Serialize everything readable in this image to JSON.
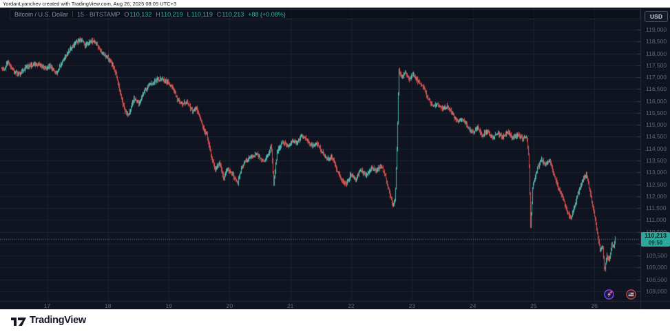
{
  "attribution": "YordanLyanchev created with TradingView.com, Aug 26, 2025 08:05 UTC+3",
  "footer": {
    "brand": "TradingView"
  },
  "chart": {
    "legend": {
      "symbol": "Bitcoin / U.S. Dollar",
      "timeframe_exchange": "15 · BITSTAMP",
      "ohlc": [
        {
          "k": "O",
          "v": "110,132"
        },
        {
          "k": "H",
          "v": "110,219"
        },
        {
          "k": "L",
          "v": "110,119"
        },
        {
          "k": "C",
          "v": "110,213"
        }
      ],
      "change": "+88 (+0.08%)"
    },
    "currency_button": "USD",
    "price_label": {
      "price": "110,213",
      "countdown": "09:50"
    },
    "event_markers": [
      {
        "name": "crypto-event",
        "style": "purple-sparkle"
      },
      {
        "name": "us-economic-event",
        "style": "us-flag"
      }
    ]
  },
  "chart_data": {
    "type": "candlestick",
    "title": "Bitcoin / U.S. Dollar",
    "exchange": "BITSTAMP",
    "interval_minutes": 15,
    "ohlc": {
      "open": 110132,
      "high": 110219,
      "low": 110119,
      "close": 110213
    },
    "change_abs": "+88",
    "change_pct": "+0.08%",
    "last_price": 110213,
    "bar_close_countdown": "09:50",
    "grid": true,
    "legend_position": "top-left",
    "colors": {
      "up": "#54bab0",
      "down": "#d6524f",
      "accent": "#2aa89b",
      "grid": "#1c2330",
      "background": "#0f1420"
    },
    "y_axis": {
      "side": "right",
      "range": [
        108000,
        119000
      ],
      "step": 500,
      "ticks": [
        119000,
        118500,
        118000,
        117500,
        117000,
        116500,
        116000,
        115500,
        115000,
        114500,
        114000,
        113500,
        113000,
        112500,
        112000,
        111500,
        111000,
        110500,
        110000,
        109500,
        109000,
        108500,
        108000
      ],
      "labels": [
        "119,000",
        "118,500",
        "118,000",
        "117,500",
        "117,000",
        "116,500",
        "116,000",
        "115,500",
        "115,000",
        "114,500",
        "114,000",
        "113,500",
        "113,000",
        "112,500",
        "112,000",
        "111,500",
        "111,000",
        "110,500",
        "110,000",
        "109,500",
        "109,000",
        "108,500",
        "108,000"
      ]
    },
    "x_axis": {
      "unit": "day-of-month (Aug 2025)",
      "ticks": [
        17,
        18,
        19,
        20,
        21,
        22,
        23,
        24,
        25,
        26
      ],
      "labels": [
        "17",
        "18",
        "19",
        "20",
        "21",
        "22",
        "23",
        "24",
        "25",
        "26"
      ]
    },
    "price_path": [
      [
        16.2,
        117500
      ],
      [
        16.28,
        117300
      ],
      [
        16.35,
        117650
      ],
      [
        16.45,
        117200
      ],
      [
        16.55,
        117150
      ],
      [
        16.65,
        117450
      ],
      [
        16.75,
        117500
      ],
      [
        16.85,
        117550
      ],
      [
        16.95,
        117400
      ],
      [
        17.05,
        117450
      ],
      [
        17.15,
        117150
      ],
      [
        17.25,
        117700
      ],
      [
        17.35,
        118100
      ],
      [
        17.45,
        118450
      ],
      [
        17.55,
        118600
      ],
      [
        17.62,
        118350
      ],
      [
        17.7,
        118500
      ],
      [
        17.78,
        118520
      ],
      [
        17.85,
        118200
      ],
      [
        17.92,
        117950
      ],
      [
        18.0,
        117800
      ],
      [
        18.07,
        117550
      ],
      [
        18.13,
        117100
      ],
      [
        18.2,
        116300
      ],
      [
        18.27,
        115600
      ],
      [
        18.33,
        115400
      ],
      [
        18.42,
        116100
      ],
      [
        18.5,
        115900
      ],
      [
        18.58,
        116350
      ],
      [
        18.68,
        116700
      ],
      [
        18.78,
        116850
      ],
      [
        18.88,
        116950
      ],
      [
        18.97,
        116800
      ],
      [
        19.06,
        116550
      ],
      [
        19.13,
        116100
      ],
      [
        19.22,
        115900
      ],
      [
        19.3,
        115950
      ],
      [
        19.38,
        115600
      ],
      [
        19.45,
        115700
      ],
      [
        19.52,
        115200
      ],
      [
        19.58,
        114700
      ],
      [
        19.62,
        114600
      ],
      [
        19.67,
        114000
      ],
      [
        19.71,
        113500
      ],
      [
        19.76,
        113100
      ],
      [
        19.83,
        113400
      ],
      [
        19.9,
        112730
      ],
      [
        19.96,
        113200
      ],
      [
        20.05,
        112900
      ],
      [
        20.13,
        112550
      ],
      [
        20.18,
        113100
      ],
      [
        20.25,
        113450
      ],
      [
        20.32,
        113600
      ],
      [
        20.41,
        113750
      ],
      [
        20.48,
        113700
      ],
      [
        20.55,
        113450
      ],
      [
        20.62,
        113650
      ],
      [
        20.68,
        114200
      ],
      [
        20.72,
        112500
      ],
      [
        20.78,
        113900
      ],
      [
        20.87,
        114300
      ],
      [
        20.95,
        114100
      ],
      [
        21.03,
        114350
      ],
      [
        21.1,
        114250
      ],
      [
        21.19,
        114550
      ],
      [
        21.27,
        114350
      ],
      [
        21.35,
        114100
      ],
      [
        21.44,
        114200
      ],
      [
        21.52,
        113850
      ],
      [
        21.6,
        113550
      ],
      [
        21.68,
        113650
      ],
      [
        21.76,
        113100
      ],
      [
        21.83,
        112700
      ],
      [
        21.91,
        112500
      ],
      [
        21.99,
        112900
      ],
      [
        22.07,
        112700
      ],
      [
        22.15,
        113100
      ],
      [
        22.24,
        112850
      ],
      [
        22.32,
        113200
      ],
      [
        22.41,
        113050
      ],
      [
        22.49,
        113300
      ],
      [
        22.56,
        112800
      ],
      [
        22.63,
        112100
      ],
      [
        22.68,
        111600
      ],
      [
        22.72,
        111900
      ],
      [
        22.75,
        114200
      ],
      [
        22.78,
        117350
      ],
      [
        22.82,
        117000
      ],
      [
        22.88,
        117200
      ],
      [
        22.95,
        116900
      ],
      [
        23.02,
        117100
      ],
      [
        23.1,
        116800
      ],
      [
        23.18,
        116600
      ],
      [
        23.26,
        116100
      ],
      [
        23.34,
        115750
      ],
      [
        23.42,
        115900
      ],
      [
        23.5,
        115650
      ],
      [
        23.58,
        115800
      ],
      [
        23.66,
        115450
      ],
      [
        23.74,
        115150
      ],
      [
        23.82,
        115250
      ],
      [
        23.9,
        114950
      ],
      [
        23.99,
        114650
      ],
      [
        24.07,
        114900
      ],
      [
        24.15,
        114550
      ],
      [
        24.24,
        114750
      ],
      [
        24.32,
        114450
      ],
      [
        24.4,
        114650
      ],
      [
        24.49,
        114500
      ],
      [
        24.57,
        114700
      ],
      [
        24.65,
        114450
      ],
      [
        24.74,
        114600
      ],
      [
        24.81,
        114400
      ],
      [
        24.88,
        114550
      ],
      [
        24.92,
        113500
      ],
      [
        24.945,
        110700
      ],
      [
        24.98,
        112400
      ],
      [
        25.05,
        113100
      ],
      [
        25.12,
        113550
      ],
      [
        25.19,
        113350
      ],
      [
        25.26,
        113500
      ],
      [
        25.33,
        112900
      ],
      [
        25.4,
        112400
      ],
      [
        25.48,
        111900
      ],
      [
        25.55,
        111300
      ],
      [
        25.61,
        111050
      ],
      [
        25.68,
        111700
      ],
      [
        25.74,
        112200
      ],
      [
        25.81,
        112700
      ],
      [
        25.87,
        112900
      ],
      [
        25.93,
        112100
      ],
      [
        25.99,
        111300
      ],
      [
        26.04,
        110500
      ],
      [
        26.09,
        109700
      ],
      [
        26.13,
        109900
      ],
      [
        26.16,
        108800
      ],
      [
        26.2,
        109500
      ],
      [
        26.24,
        109300
      ],
      [
        26.28,
        110000
      ],
      [
        26.31,
        109900
      ],
      [
        26.34,
        110213
      ]
    ]
  }
}
